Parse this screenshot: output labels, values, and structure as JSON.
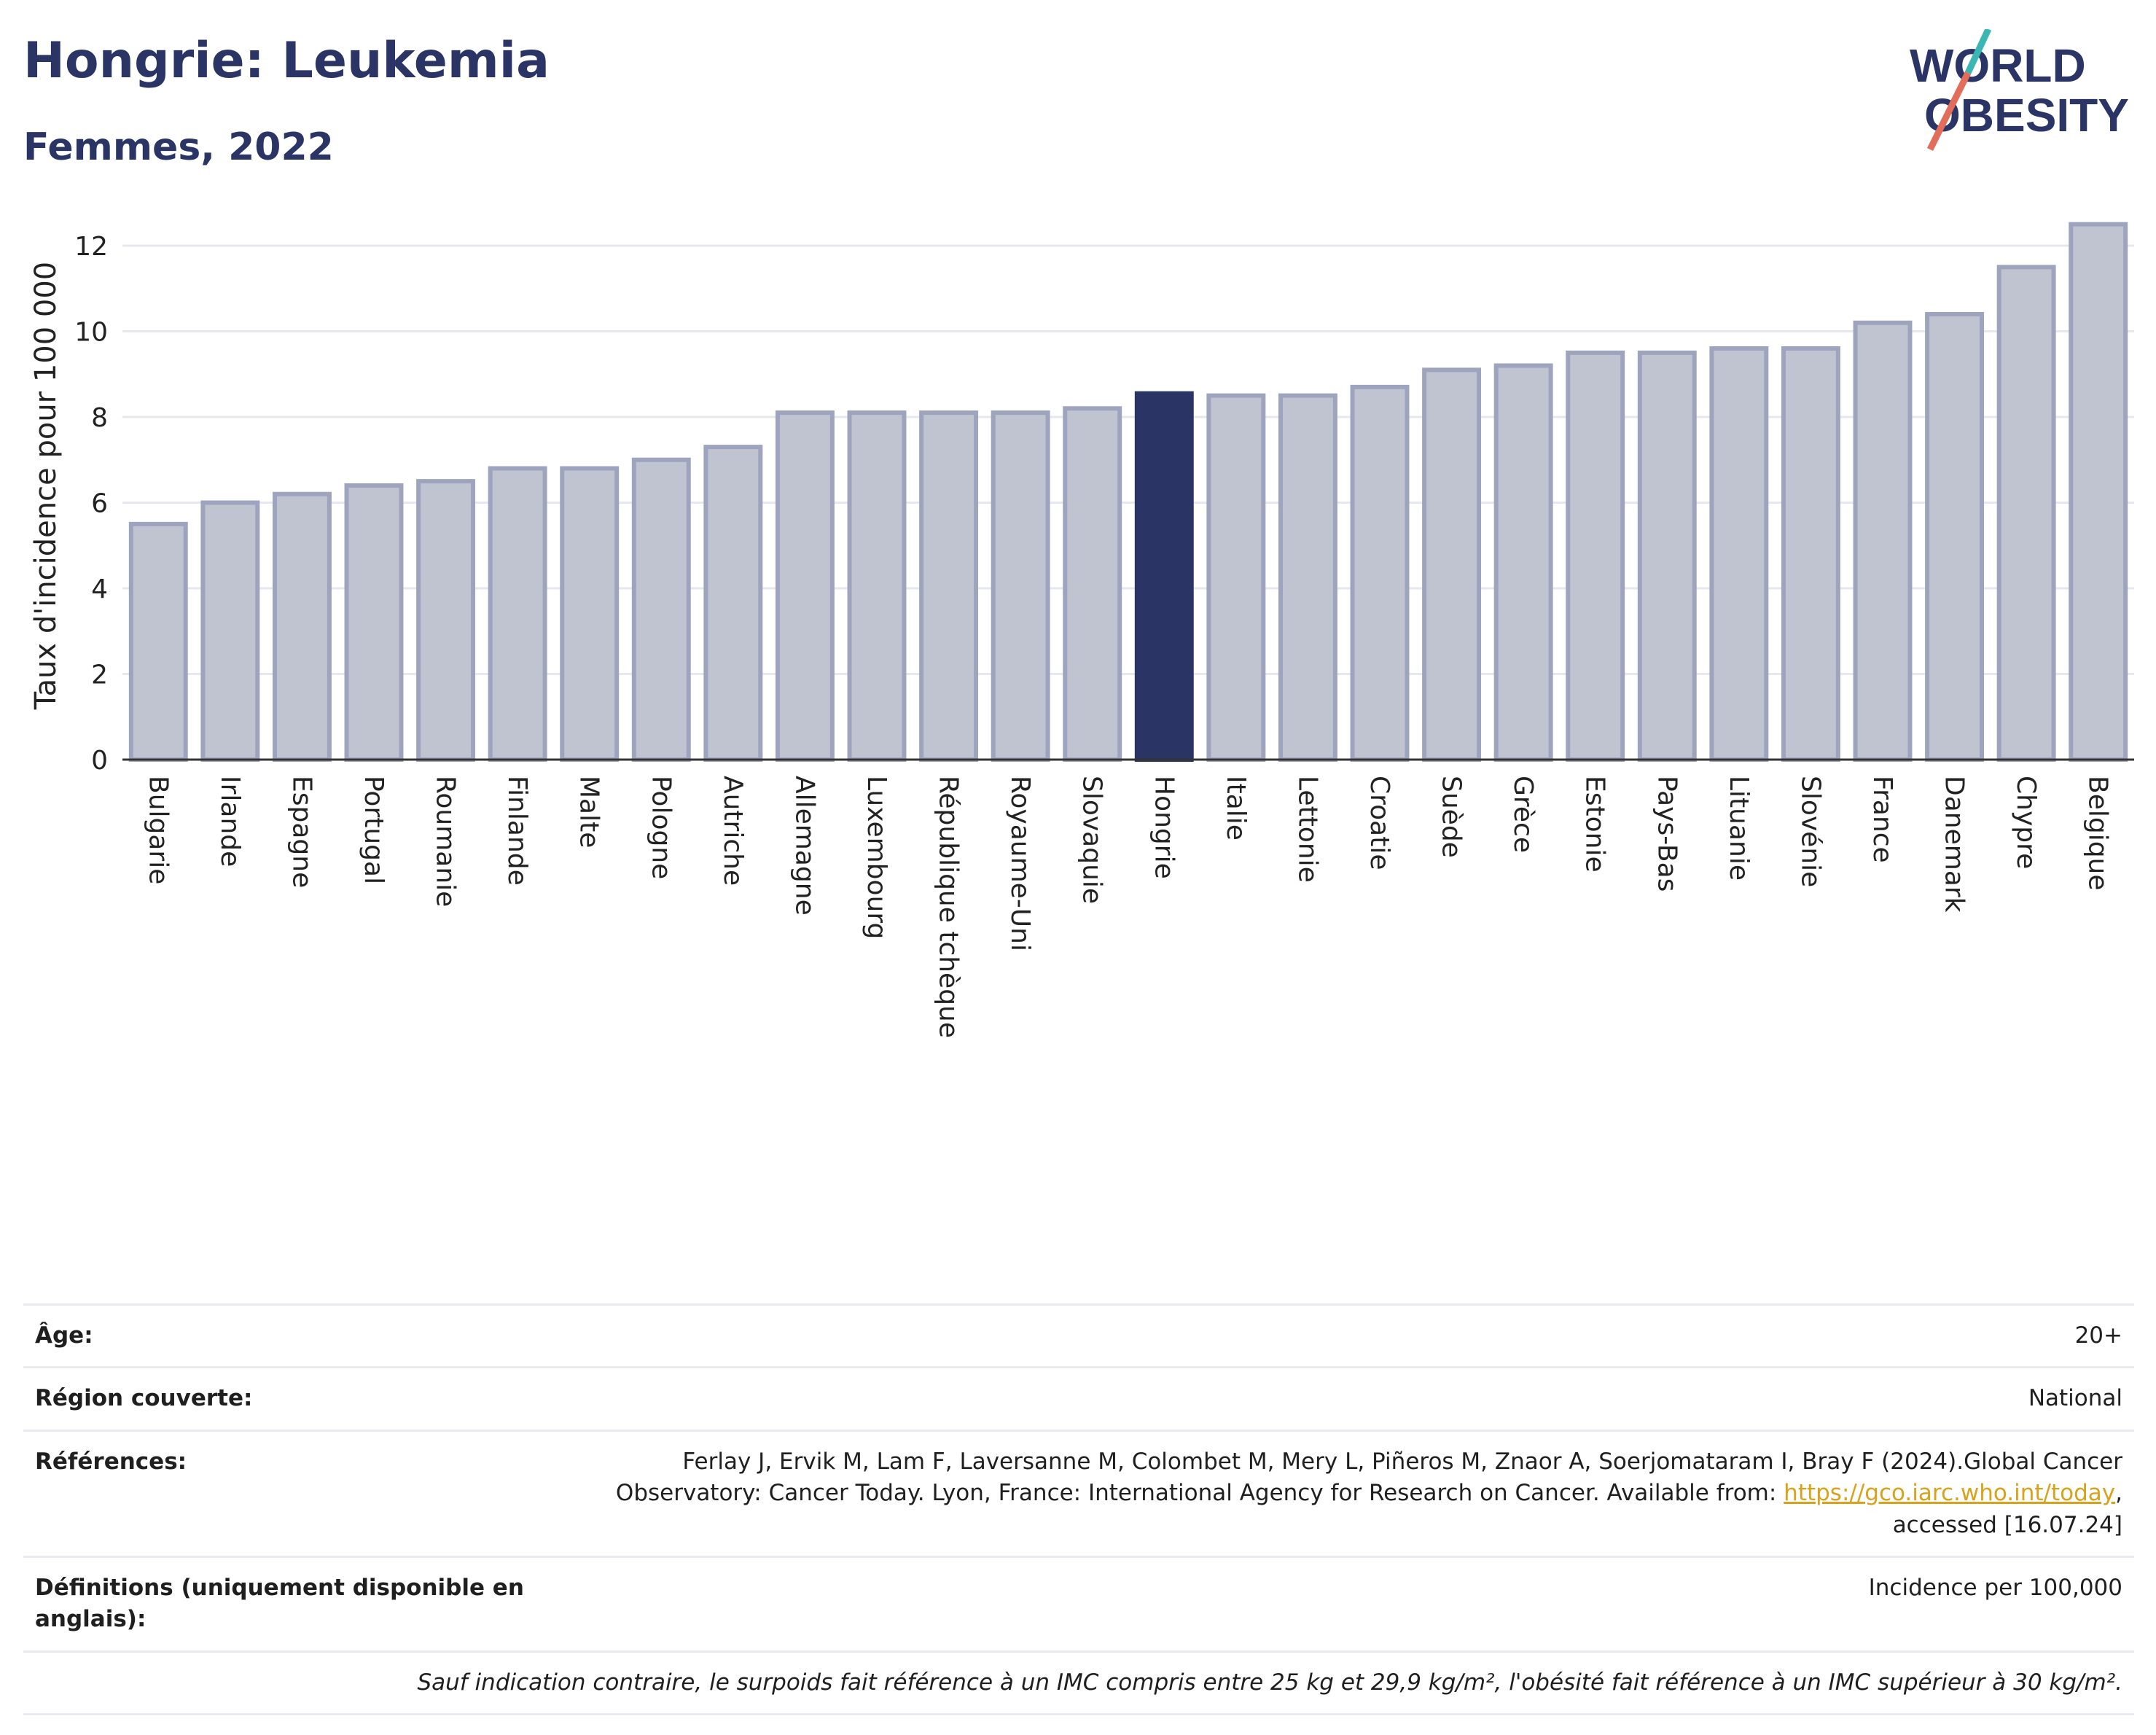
{
  "header": {
    "title": "Hongrie: Leukemia",
    "subtitle": "Femmes, 2022"
  },
  "logo": {
    "line1": "WORLD",
    "line2": "OBESITY"
  },
  "colors": {
    "bar": "#c0c3d0",
    "bar_border": "#9ea4bd",
    "highlight": "#2a3566",
    "grid": "#e6e7ef"
  },
  "chart_data": {
    "type": "bar",
    "ylabel": "Taux d'incidence pour 100 000",
    "ylim": [
      0,
      12.8
    ],
    "yticks": [
      0,
      2,
      4,
      6,
      8,
      10,
      12
    ],
    "grid": true,
    "highlight": "Hongrie",
    "categories": [
      "Bulgarie",
      "Irlande",
      "Espagne",
      "Portugal",
      "Roumanie",
      "Finlande",
      "Malte",
      "Pologne",
      "Autriche",
      "Allemagne",
      "Luxembourg",
      "République tchèque",
      "Royaume-Uni",
      "Slovaquie",
      "Hongrie",
      "Italie",
      "Lettonie",
      "Croatie",
      "Suède",
      "Grèce",
      "Estonie",
      "Pays-Bas",
      "Lituanie",
      "Slovénie",
      "France",
      "Danemark",
      "Chypre",
      "Belgique"
    ],
    "values": [
      5.5,
      6.0,
      6.2,
      6.4,
      6.5,
      6.8,
      6.8,
      7.0,
      7.3,
      8.1,
      8.1,
      8.1,
      8.1,
      8.2,
      8.55,
      8.5,
      8.5,
      8.7,
      9.1,
      9.2,
      9.5,
      9.5,
      9.6,
      9.6,
      10.2,
      10.4,
      11.5,
      12.5
    ]
  },
  "meta": {
    "age_label": "Âge:",
    "age_value": "20+",
    "region_label": "Région couverte:",
    "region_value": "National",
    "refs_label": "Références:",
    "refs_text": "Ferlay J, Ervik M, Lam F, Laversanne M, Colombet M, Mery L, Piñeros M, Znaor A, Soerjomataram I, Bray F (2024).Global Cancer Observatory: Cancer Today. Lyon, France: International Agency for Research on Cancer. Available from:",
    "refs_link": "https://gco.iarc.who.int/today",
    "refs_tail": ", accessed [16.07.24]",
    "defs_label": "Définitions (uniquement disponible en anglais):",
    "defs_value": "Incidence per 100,000",
    "note": "Sauf indication contraire, le surpoids fait référence à un IMC compris entre 25 kg et 29,9 kg/m², l'obésité fait référence à un IMC supérieur à 30 kg/m²."
  }
}
